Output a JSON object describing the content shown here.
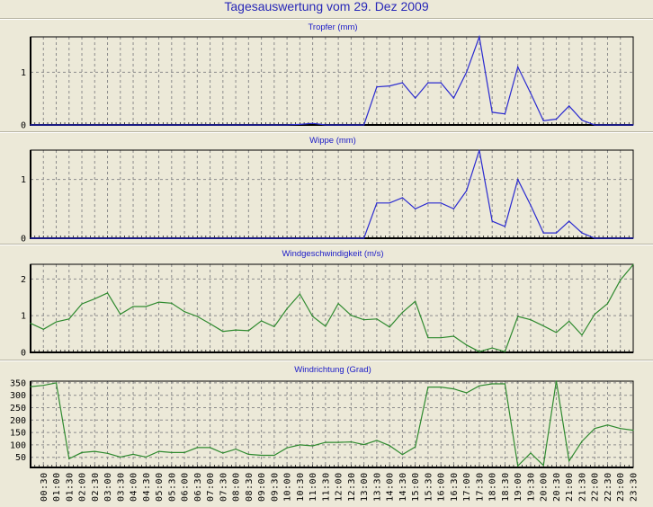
{
  "title": "Tagesauswertung vom 29. Dez 2009",
  "colors": {
    "blue_line": "#2a2ad0",
    "green_line": "#2f8a2f",
    "grid": "#8c8c8c",
    "background": "#ECE9D8"
  },
  "chart_data": [
    {
      "type": "line",
      "title": "Tropfer (mm)",
      "ylim": [
        0,
        1.67
      ],
      "yticks": [
        0,
        1
      ],
      "color": "#2a2ad0",
      "values": [
        0,
        0,
        0,
        0,
        0,
        0,
        0,
        0,
        0,
        0,
        0,
        0,
        0,
        0,
        0,
        0,
        0,
        0,
        0,
        0,
        0,
        0.01,
        0.03,
        0,
        0,
        0,
        0,
        0.72,
        0.74,
        0.8,
        0.51,
        0.8,
        0.8,
        0.51,
        1.0,
        1.67,
        0.24,
        0.21,
        1.1,
        0.6,
        0.08,
        0.11,
        0.36,
        0.09,
        0,
        0,
        0,
        0
      ]
    },
    {
      "type": "line",
      "title": "Wippe (mm)",
      "ylim": [
        0,
        1.5
      ],
      "yticks": [
        0,
        1
      ],
      "color": "#2a2ad0",
      "values": [
        0,
        0,
        0,
        0,
        0,
        0,
        0,
        0,
        0,
        0,
        0,
        0,
        0,
        0,
        0,
        0,
        0,
        0,
        0,
        0,
        0,
        0,
        0,
        0,
        0,
        0,
        0,
        0.6,
        0.6,
        0.69,
        0.5,
        0.6,
        0.6,
        0.5,
        0.81,
        1.5,
        0.29,
        0.2,
        1.0,
        0.56,
        0.09,
        0.09,
        0.29,
        0.09,
        0,
        0,
        0,
        0
      ]
    },
    {
      "type": "line",
      "title": "Windgeschwindigkeit (m/s)",
      "ylim": [
        0,
        2.4
      ],
      "yticks": [
        0,
        1,
        2
      ],
      "color": "#2f8a2f",
      "values": [
        0.79,
        0.63,
        0.83,
        0.91,
        1.32,
        1.46,
        1.62,
        1.04,
        1.25,
        1.25,
        1.37,
        1.34,
        1.11,
        0.98,
        0.78,
        0.57,
        0.61,
        0.59,
        0.86,
        0.7,
        1.19,
        1.59,
        0.98,
        0.71,
        1.33,
        1.01,
        0.89,
        0.91,
        0.69,
        1.09,
        1.39,
        0.4,
        0.4,
        0.44,
        0.2,
        0.02,
        0.12,
        0.02,
        0.98,
        0.89,
        0.72,
        0.54,
        0.85,
        0.47,
        1.04,
        1.33,
        1.97,
        2.39
      ]
    },
    {
      "type": "line",
      "title": "Windrichtung (Grad)",
      "ylim": [
        9,
        357
      ],
      "yticks": [
        50,
        100,
        150,
        200,
        250,
        300,
        350
      ],
      "color": "#2f8a2f",
      "values": [
        335,
        340,
        350,
        44,
        69,
        74,
        66,
        51,
        62,
        51,
        74,
        69,
        69,
        89,
        89,
        67,
        83,
        62,
        58,
        58,
        88,
        100,
        96,
        110,
        110,
        112,
        101,
        118,
        97,
        61,
        92,
        333,
        333,
        326,
        310,
        338,
        346,
        346,
        15,
        67,
        17,
        358,
        35,
        114,
        166,
        180,
        166,
        159
      ]
    }
  ],
  "x": [
    "00:00",
    "00:30",
    "01:00",
    "01:30",
    "02:00",
    "02:30",
    "03:00",
    "03:30",
    "04:00",
    "04:30",
    "05:00",
    "05:30",
    "06:00",
    "06:30",
    "07:00",
    "07:30",
    "08:00",
    "08:30",
    "09:00",
    "09:30",
    "10:00",
    "10:30",
    "11:00",
    "11:30",
    "12:00",
    "12:30",
    "13:00",
    "13:30",
    "14:00",
    "14:30",
    "15:00",
    "15:30",
    "16:00",
    "16:30",
    "17:00",
    "17:30",
    "18:00",
    "18:30",
    "19:00",
    "19:30",
    "20:00",
    "20:30",
    "21:00",
    "21:30",
    "22:00",
    "22:30",
    "23:00",
    "23:30"
  ]
}
